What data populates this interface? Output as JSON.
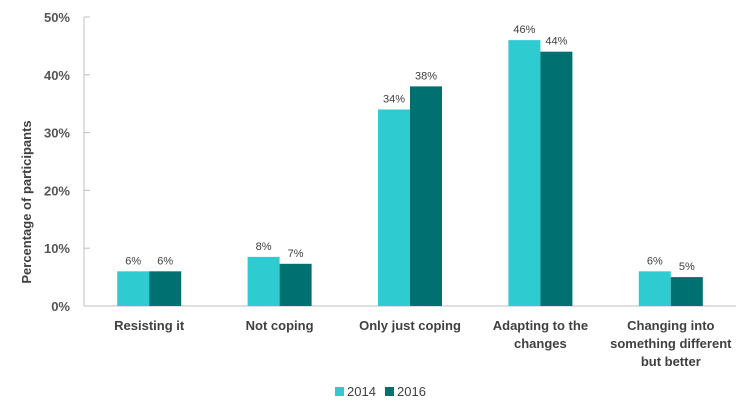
{
  "chart_data": {
    "type": "bar",
    "ylabel": "Percentage of participants",
    "xlabel": "",
    "title": "",
    "ylim": [
      0,
      50
    ],
    "yticks": [
      0,
      10,
      20,
      30,
      40,
      50
    ],
    "ytick_labels": [
      "0%",
      "10%",
      "20%",
      "30%",
      "40%",
      "50%"
    ],
    "categories": [
      [
        "Resisting it"
      ],
      [
        "Not coping"
      ],
      [
        "Only just coping"
      ],
      [
        "Adapting to the",
        "changes"
      ],
      [
        "Changing into",
        "something different",
        "but better"
      ]
    ],
    "series": [
      {
        "name": "2014",
        "color": "#2ECCD1",
        "values": [
          6,
          8.5,
          34,
          46,
          6
        ],
        "labels": [
          "6%",
          "8%",
          "34%",
          "46%",
          "6%"
        ]
      },
      {
        "name": "2016",
        "color": "#007070",
        "values": [
          6,
          7.3,
          38,
          44,
          5
        ],
        "labels": [
          "6%",
          "7%",
          "38%",
          "44%",
          "5%"
        ]
      }
    ],
    "legend_position": "bottom",
    "grid": false
  }
}
